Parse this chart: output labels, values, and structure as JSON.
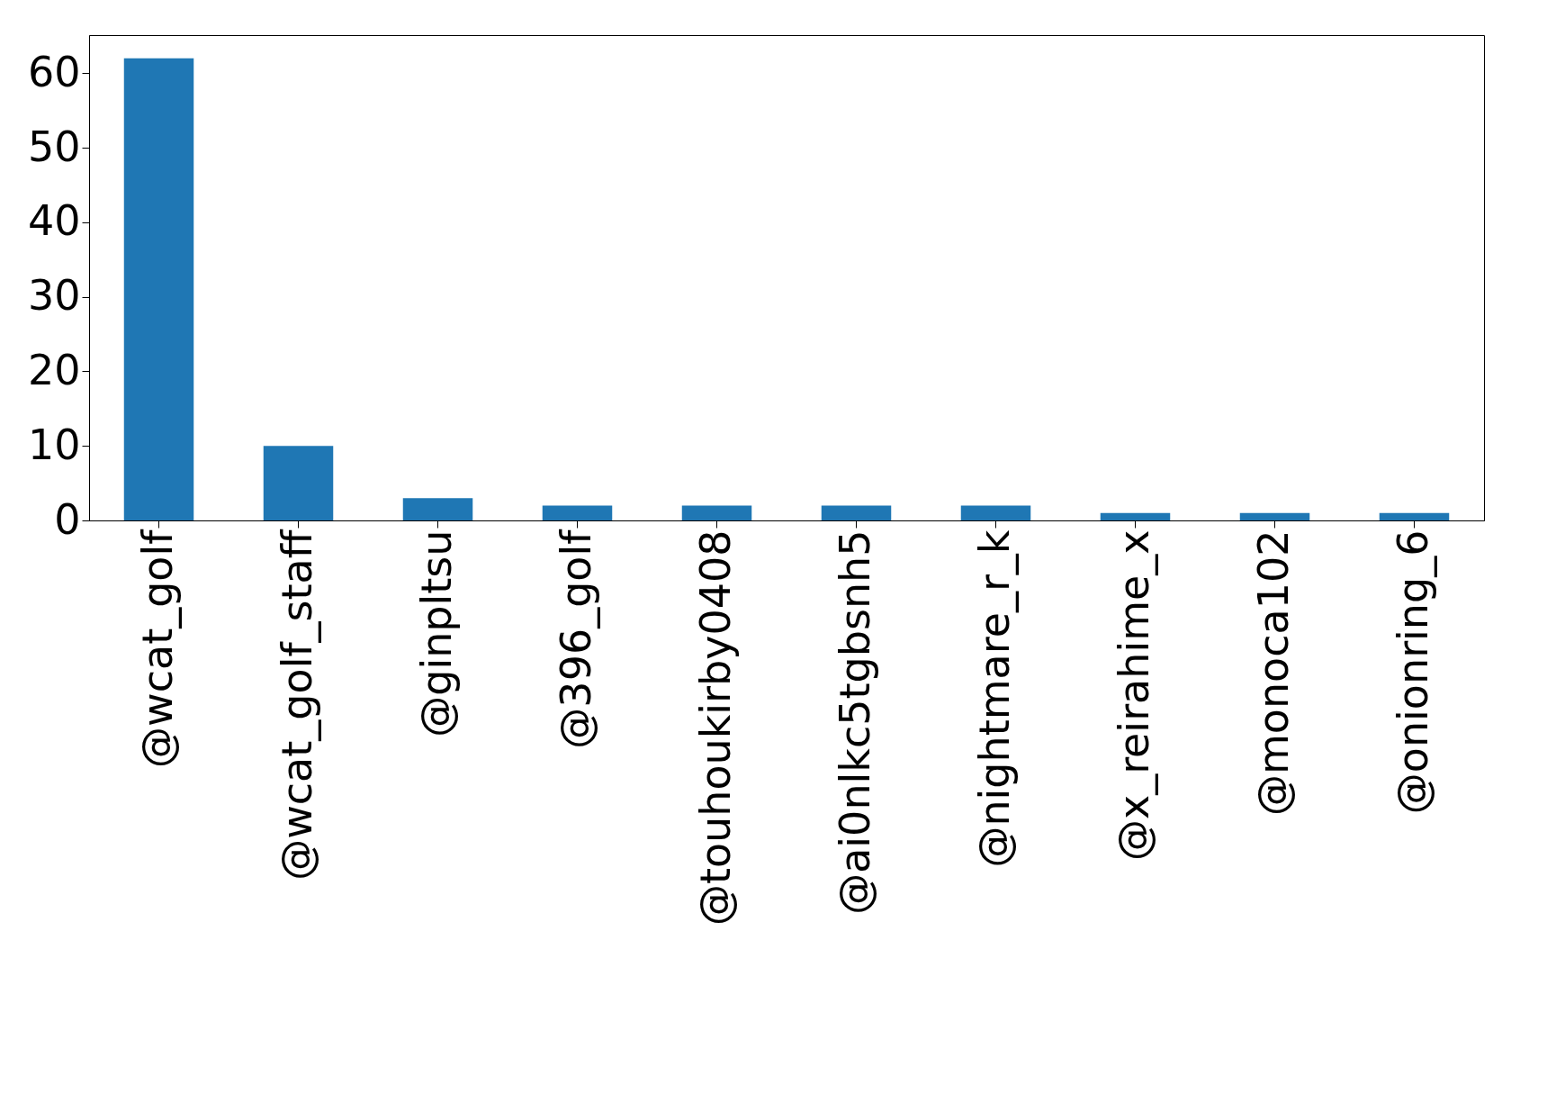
{
  "chart_data": {
    "type": "bar",
    "categories": [
      "@wcat_golf",
      "@wcat_golf_staff",
      "@ginpltsu",
      "@396_golf",
      "@touhoukirby0408",
      "@ai0nlkc5tgbsnh5",
      "@nightmare_r_k",
      "@x_reirahime_x",
      "@monoca102",
      "@onionring_6"
    ],
    "values": [
      62,
      10,
      3,
      2,
      2,
      2,
      2,
      1,
      1,
      1
    ],
    "color": "#1f77b4",
    "ylim": [
      0,
      65.1
    ],
    "yticks": [
      0,
      10,
      20,
      30,
      40,
      50,
      60
    ],
    "grid": false
  }
}
